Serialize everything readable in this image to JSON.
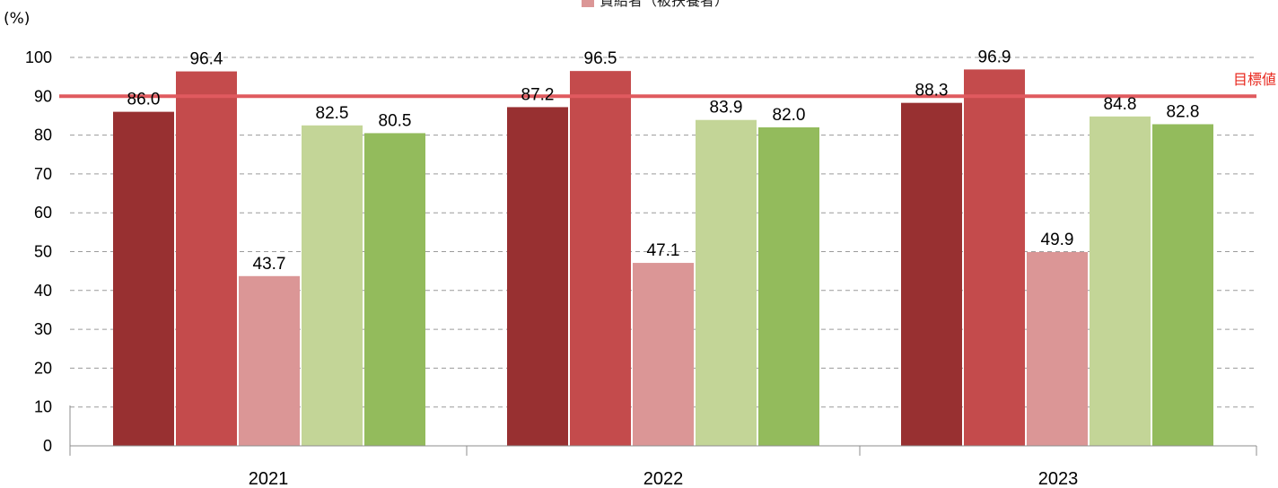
{
  "chart_data": {
    "type": "bar",
    "unit_label": "(%)",
    "categories": [
      "2021",
      "2022",
      "2023"
    ],
    "series": [
      {
        "color": "#983031",
        "values": [
          86.0,
          87.2,
          88.3
        ]
      },
      {
        "color": "#c44b4c",
        "values": [
          96.4,
          96.5,
          96.9
        ]
      },
      {
        "name": "賞給者（被扶養者）",
        "color": "#db9696",
        "values": [
          43.7,
          47.1,
          49.9
        ]
      },
      {
        "color": "#c3d597",
        "values": [
          82.5,
          83.9,
          84.8
        ]
      },
      {
        "color": "#93bb5c",
        "values": [
          80.5,
          82.0,
          82.8
        ]
      }
    ],
    "value_labels": [
      [
        "86.0",
        "96.4",
        "43.7",
        "82.5",
        "80.5"
      ],
      [
        "87.2",
        "96.5",
        "47.1",
        "83.9",
        "82.0"
      ],
      [
        "88.3",
        "96.9",
        "49.9",
        "84.8",
        "82.8"
      ]
    ],
    "ylim": [
      0,
      100
    ],
    "yticks": [
      0,
      10,
      20,
      30,
      40,
      50,
      60,
      70,
      80,
      90,
      100
    ],
    "grid": true,
    "target": {
      "label": "目標値",
      "value": 90,
      "color": "#e05a5f",
      "label_color": "#e8281e"
    },
    "legend": {
      "position": "top-center"
    }
  }
}
